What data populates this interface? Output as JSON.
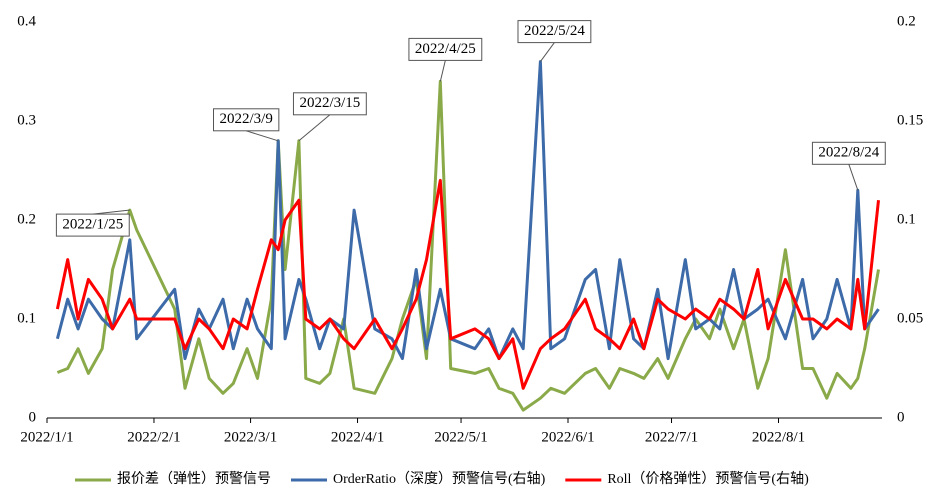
{
  "chart_data": {
    "type": "line",
    "x": [
      "2022/1/4",
      "2022/1/7",
      "2022/1/10",
      "2022/1/13",
      "2022/1/17",
      "2022/1/20",
      "2022/1/25",
      "2022/1/27",
      "2022/2/7",
      "2022/2/10",
      "2022/2/14",
      "2022/2/17",
      "2022/2/21",
      "2022/2/24",
      "2022/2/28",
      "2022/3/3",
      "2022/3/7",
      "2022/3/9",
      "2022/3/11",
      "2022/3/15",
      "2022/3/17",
      "2022/3/21",
      "2022/3/24",
      "2022/3/28",
      "2022/3/31",
      "2022/4/6",
      "2022/4/11",
      "2022/4/14",
      "2022/4/18",
      "2022/4/21",
      "2022/4/25",
      "2022/4/28",
      "2022/5/5",
      "2022/5/9",
      "2022/5/12",
      "2022/5/16",
      "2022/5/19",
      "2022/5/24",
      "2022/5/27",
      "2022/5/31",
      "2022/6/6",
      "2022/6/9",
      "2022/6/13",
      "2022/6/16",
      "2022/6/20",
      "2022/6/23",
      "2022/6/27",
      "2022/6/30",
      "2022/7/5",
      "2022/7/8",
      "2022/7/12",
      "2022/7/15",
      "2022/7/19",
      "2022/7/22",
      "2022/7/26",
      "2022/7/29",
      "2022/8/3",
      "2022/8/8",
      "2022/8/11",
      "2022/8/15",
      "2022/8/18",
      "2022/8/22",
      "2022/8/24",
      "2022/8/26",
      "2022/8/30"
    ],
    "series": [
      {
        "name": "报价差（弹性）预警信号",
        "color": "#8aaa4a",
        "values": [
          0.046,
          0.05,
          0.07,
          0.045,
          0.07,
          0.15,
          0.21,
          0.19,
          0.11,
          0.03,
          0.08,
          0.04,
          0.025,
          0.035,
          0.07,
          0.04,
          0.12,
          0.28,
          0.15,
          0.28,
          0.04,
          0.035,
          0.045,
          0.1,
          0.03,
          0.025,
          0.06,
          0.1,
          0.14,
          0.06,
          0.34,
          0.05,
          0.045,
          0.05,
          0.03,
          0.025,
          0.008,
          0.02,
          0.03,
          0.025,
          0.045,
          0.05,
          0.03,
          0.05,
          0.045,
          0.04,
          0.06,
          0.04,
          0.08,
          0.1,
          0.08,
          0.11,
          0.07,
          0.1,
          0.03,
          0.06,
          0.17,
          0.05,
          0.05,
          0.02,
          0.045,
          0.03,
          0.04,
          0.07,
          0.15
        ]
      },
      {
        "name": "OrderRatio（深度）预警信号(右轴)",
        "color": "#3d6aa8",
        "axis": "y2",
        "values": [
          0.04,
          0.06,
          0.045,
          0.06,
          0.05,
          0.045,
          0.09,
          0.04,
          0.065,
          0.03,
          0.055,
          0.045,
          0.06,
          0.035,
          0.06,
          0.045,
          0.035,
          0.14,
          0.04,
          0.07,
          0.06,
          0.035,
          0.05,
          0.045,
          0.105,
          0.045,
          0.04,
          0.03,
          0.075,
          0.035,
          0.065,
          0.04,
          0.035,
          0.045,
          0.03,
          0.045,
          0.035,
          0.18,
          0.035,
          0.04,
          0.07,
          0.075,
          0.035,
          0.08,
          0.04,
          0.035,
          0.065,
          0.03,
          0.08,
          0.045,
          0.05,
          0.045,
          0.075,
          0.05,
          0.055,
          0.06,
          0.04,
          0.07,
          0.04,
          0.05,
          0.07,
          0.045,
          0.115,
          0.045,
          0.055
        ]
      },
      {
        "name": "Roll（价格弹性）预警信号(右轴)",
        "color": "#ff0000",
        "axis": "y2",
        "values": [
          0.055,
          0.08,
          0.05,
          0.07,
          0.06,
          0.045,
          0.06,
          0.05,
          0.05,
          0.035,
          0.05,
          0.045,
          0.035,
          0.05,
          0.045,
          0.065,
          0.09,
          0.085,
          0.1,
          0.11,
          0.05,
          0.045,
          0.05,
          0.04,
          0.035,
          0.05,
          0.035,
          0.045,
          0.06,
          0.08,
          0.12,
          0.04,
          0.045,
          0.04,
          0.03,
          0.04,
          0.015,
          0.035,
          0.04,
          0.045,
          0.06,
          0.045,
          0.04,
          0.035,
          0.05,
          0.035,
          0.06,
          0.055,
          0.05,
          0.055,
          0.05,
          0.06,
          0.055,
          0.05,
          0.075,
          0.045,
          0.07,
          0.05,
          0.05,
          0.045,
          0.05,
          0.045,
          0.07,
          0.045,
          0.11
        ]
      }
    ],
    "annotations": [
      {
        "text": "2022/1/25",
        "x": "2022/1/25",
        "series": 0
      },
      {
        "text": "2022/3/9",
        "x": "2022/3/9",
        "series": 0
      },
      {
        "text": "2022/3/15",
        "x": "2022/3/15",
        "series": 0
      },
      {
        "text": "2022/4/25",
        "x": "2022/4/25",
        "series": 0
      },
      {
        "text": "2022/5/24",
        "x": "2022/5/24",
        "series": 1
      },
      {
        "text": "2022/8/24",
        "x": "2022/8/24",
        "series": 1
      }
    ],
    "xlim": [
      "2022/1/1",
      "2022/8/31"
    ],
    "xticks": [
      "2022/1/1",
      "2022/2/1",
      "2022/3/1",
      "2022/4/1",
      "2022/5/1",
      "2022/6/1",
      "2022/7/1",
      "2022/8/1"
    ],
    "ylim": [
      0,
      0.4
    ],
    "yticks": [
      0,
      0.1,
      0.2,
      0.3,
      0.4
    ],
    "y2lim": [
      0,
      0.2
    ],
    "y2ticks": [
      0,
      0.05,
      0.1,
      0.15,
      0.2
    ],
    "legend": "bottom",
    "grid": false
  }
}
